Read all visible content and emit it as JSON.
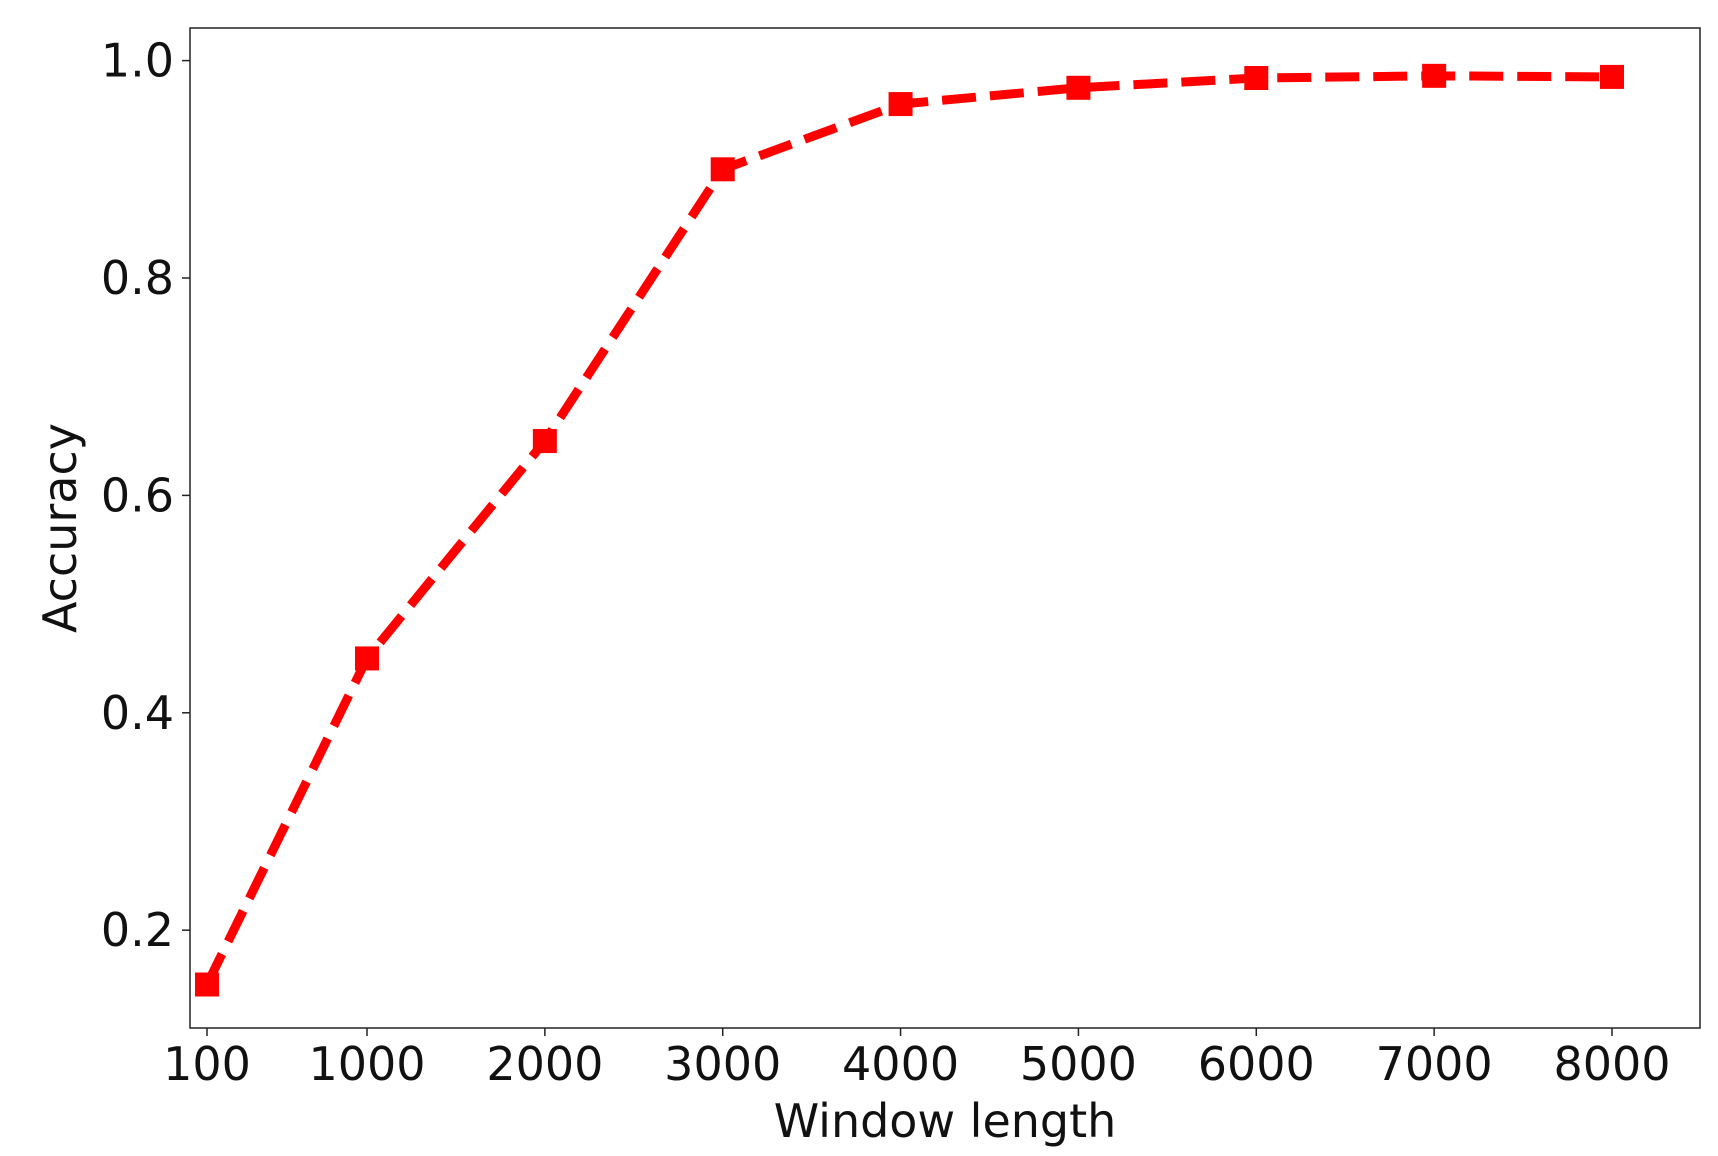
{
  "chart_data": {
    "type": "line",
    "title": "",
    "xlabel": "Window length",
    "ylabel": "Accuracy",
    "x_ticks": [
      "100",
      "1000",
      "2000",
      "3000",
      "4000",
      "5000",
      "6000",
      "7000",
      "8000"
    ],
    "y_ticks": [
      "0.2",
      "0.4",
      "0.6",
      "0.8",
      "1.0"
    ],
    "ylim": [
      0.11,
      1.03
    ],
    "grid": false,
    "legend": "none",
    "series": [
      {
        "color": "#ff0000",
        "line_style": "dashed",
        "marker": "square",
        "x": [
          100,
          1000,
          2000,
          3000,
          4000,
          5000,
          6000,
          7000,
          8000
        ],
        "y": [
          0.15,
          0.45,
          0.65,
          0.9,
          0.96,
          0.975,
          0.984,
          0.986,
          0.985
        ]
      }
    ]
  }
}
